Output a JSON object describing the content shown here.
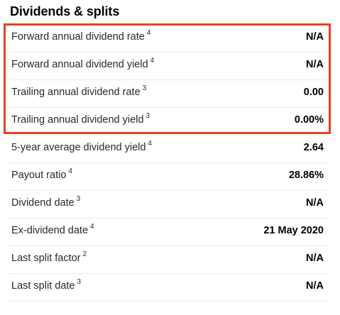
{
  "section": {
    "title": "Dividends & splits"
  },
  "rows": [
    {
      "label": "Forward annual dividend rate",
      "note": "4",
      "value": "N/A"
    },
    {
      "label": "Forward annual dividend yield",
      "note": "4",
      "value": "N/A"
    },
    {
      "label": "Trailing annual dividend rate",
      "note": "3",
      "value": "0.00"
    },
    {
      "label": "Trailing annual dividend yield",
      "note": "3",
      "value": "0.00%"
    },
    {
      "label": "5-year average dividend yield",
      "note": "4",
      "value": "2.64"
    },
    {
      "label": "Payout ratio",
      "note": "4",
      "value": "28.86%"
    },
    {
      "label": "Dividend date",
      "note": "3",
      "value": "N/A"
    },
    {
      "label": "Ex-dividend date",
      "note": "4",
      "value": "21 May 2020"
    },
    {
      "label": "Last split factor",
      "note": "2",
      "value": "N/A"
    },
    {
      "label": "Last split date",
      "note": "3",
      "value": "N/A"
    }
  ],
  "highlight": {
    "color": "#e8411e"
  }
}
